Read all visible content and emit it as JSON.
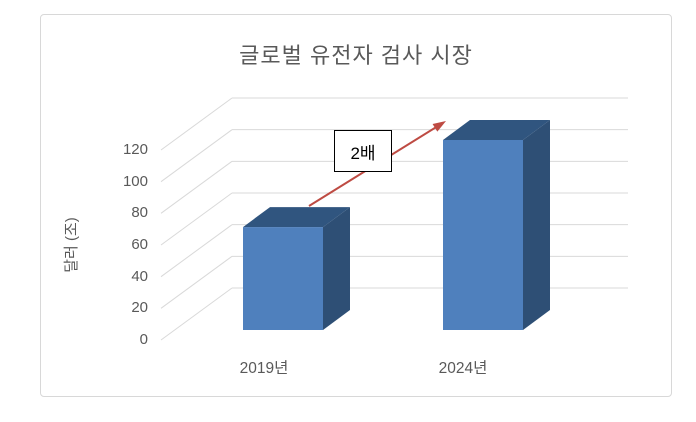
{
  "chart_data": {
    "type": "bar",
    "style": "3d-column",
    "title": "글로벌 유전자 검사 시장",
    "categories": [
      "2019년",
      "2024년"
    ],
    "values": [
      65,
      120
    ],
    "xlabel": "",
    "ylabel": "달러 (조)",
    "yticks": [
      0,
      20,
      40,
      60,
      80,
      100,
      120
    ],
    "ylim": [
      0,
      120
    ],
    "grid": true,
    "legend": false,
    "annotation": {
      "text": "2배",
      "from_category": "2019년",
      "to_category": "2024년",
      "shape": "arrow-up-right"
    },
    "colors": {
      "bar_front": "#4f80bd",
      "bar_top": "#30557f",
      "bar_side": "#2e4f75",
      "gridline": "#d9d9d9",
      "arrow": "#be4b43",
      "text": "#595959",
      "frame_border": "#d8d8d8",
      "background": "#ffffff"
    }
  }
}
